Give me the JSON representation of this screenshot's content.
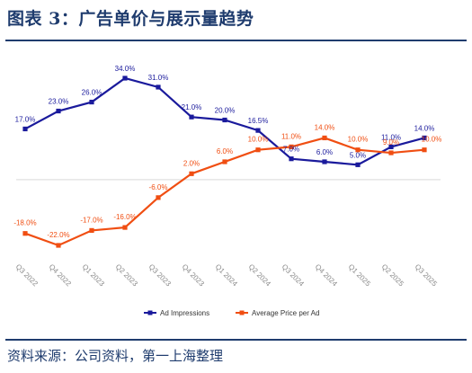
{
  "title": "图表 3：广告单价与展示量趋势",
  "source": "资料来源：公司资料，第一上海整理",
  "chart_data": {
    "type": "line",
    "categories": [
      "Q3 2022",
      "Q4 2022",
      "Q1 2023",
      "Q2 2023",
      "Q3 2023",
      "Q4 2023",
      "Q1 2024",
      "Q2 2024",
      "Q3 2024",
      "Q4 2024",
      "Q1 2025",
      "Q2 2025",
      "Q3 2025"
    ],
    "series": [
      {
        "name": "Ad Impressions",
        "color": "#1a1a9c",
        "values": [
          17,
          23,
          26,
          34,
          31,
          21,
          20,
          16.5,
          7,
          6,
          5,
          11,
          14
        ],
        "labels": [
          "17.0%",
          "23.0%",
          "26.0%",
          "34.0%",
          "31.0%",
          "21.0%",
          "20.0%",
          "16.5%",
          "7.0%",
          "6.0%",
          "5.0%",
          "11.0%",
          "14.0%"
        ]
      },
      {
        "name": "Average Price per Ad",
        "color": "#f04e12",
        "values": [
          -18,
          -22,
          -17,
          -16,
          -6,
          2,
          6,
          10,
          11,
          14,
          10,
          9,
          10
        ],
        "labels": [
          "-18.0%",
          "-22.0%",
          "-17.0%",
          "-16.0%",
          "-6.0%",
          "2.0%",
          "6.0%",
          "10.0%",
          "11.0%",
          "14.0%",
          "10.0%",
          "9.0%",
          "10.0%"
        ]
      }
    ],
    "ylim": [
      -30,
      40
    ],
    "legend_position": "bottom"
  }
}
